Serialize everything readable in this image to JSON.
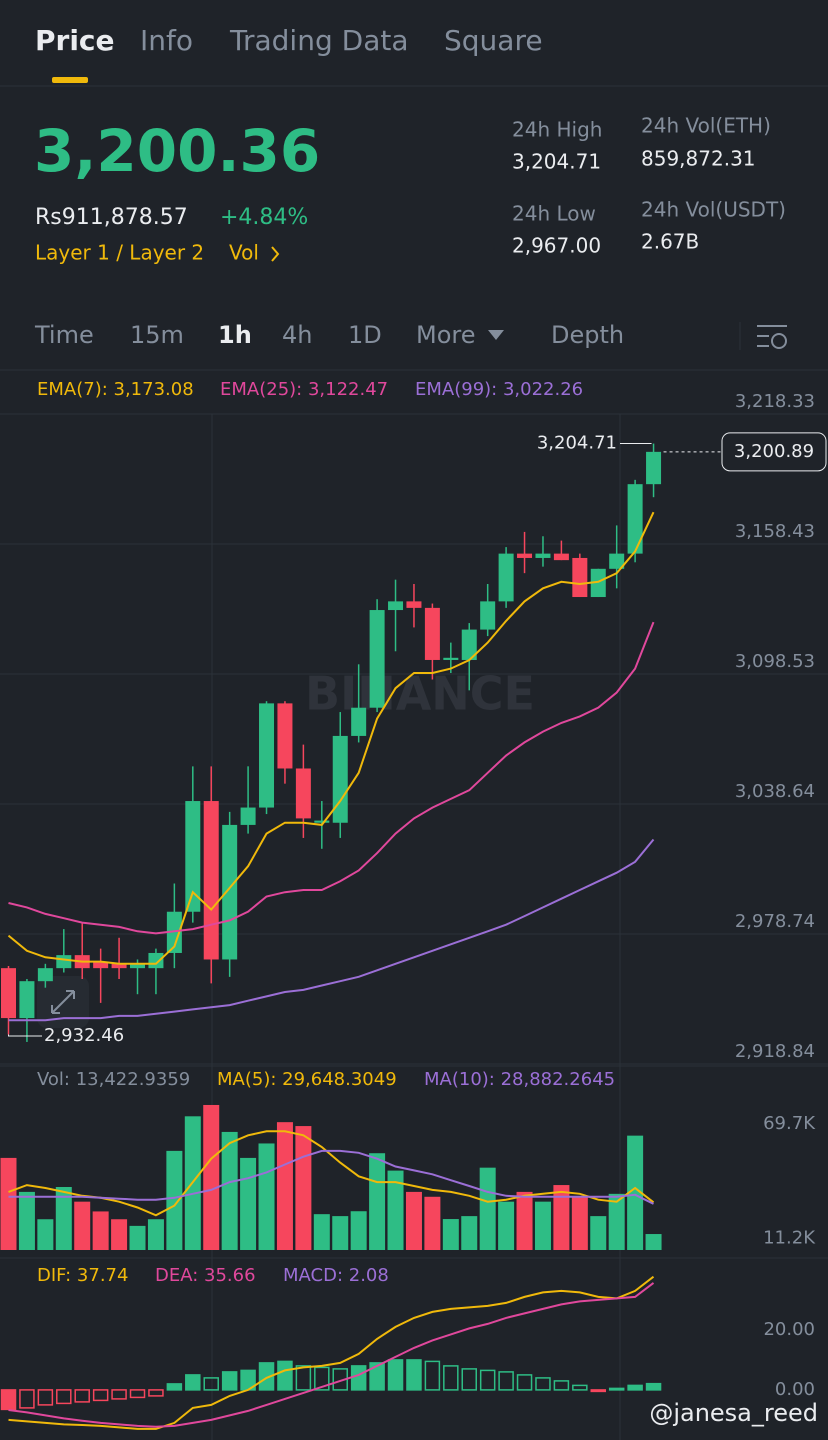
{
  "tabs": [
    "Price",
    "Info",
    "Trading Data",
    "Square"
  ],
  "header": {
    "price": "3,200.36",
    "fiat": "Rs911,878.57",
    "change": "+4.84%",
    "tag": "Layer 1 / Layer 2",
    "vol": "Vol"
  },
  "stats": [
    {
      "label": "24h High",
      "value": "3,204.71"
    },
    {
      "label": "24h Vol(ETH)",
      "value": "859,872.31"
    },
    {
      "label": "24h Low",
      "value": "2,967.00"
    },
    {
      "label": "24h Vol(USDT)",
      "value": "2.67B"
    }
  ],
  "intervals": [
    "Time",
    "15m",
    "1h",
    "4h",
    "1D",
    "More",
    "Depth"
  ],
  "chart": {
    "type": "candlestick",
    "watermark": "BINANCE",
    "price": {
      "ylim": [
        2918.84,
        3218.33
      ],
      "yticks": [
        {
          "value": 3218.33,
          "label": "3,218.33"
        },
        {
          "value": 3158.43,
          "label": "3,158.43"
        },
        {
          "value": 3098.53,
          "label": "3,098.53"
        },
        {
          "value": 3038.64,
          "label": "3,038.64"
        },
        {
          "value": 2978.74,
          "label": "2,978.74"
        },
        {
          "value": 2918.84,
          "label": "2,918.84"
        }
      ],
      "up_color": "#2ebd85",
      "down_color": "#f6465d",
      "candles": [
        [
          2963,
          2964,
          2932.46,
          2940
        ],
        [
          2940,
          2958,
          2929,
          2957
        ],
        [
          2957,
          2965,
          2954,
          2963
        ],
        [
          2963,
          2981,
          2961,
          2969
        ],
        [
          2969,
          2984,
          2958,
          2963
        ],
        [
          2966,
          2972,
          2947,
          2963
        ],
        [
          2965,
          2977,
          2958,
          2963
        ],
        [
          2963,
          2967,
          2951,
          2965
        ],
        [
          2963,
          2972,
          2951,
          2970
        ],
        [
          2970,
          3002,
          2963,
          2989
        ],
        [
          2989,
          3056,
          2984,
          3040
        ],
        [
          3040,
          3056,
          2956,
          2967
        ],
        [
          2967,
          3035,
          2959,
          3029
        ],
        [
          3029,
          3056,
          3025,
          3037
        ],
        [
          3037,
          3086,
          3034,
          3085
        ],
        [
          3085,
          3086,
          3048,
          3055
        ],
        [
          3055,
          3066,
          3023,
          3032
        ],
        [
          3030,
          3040,
          3018,
          3031
        ],
        [
          3030,
          3081,
          3023,
          3070
        ],
        [
          3070,
          3103,
          3067,
          3083
        ],
        [
          3083,
          3133,
          3081,
          3128
        ],
        [
          3128,
          3142,
          3109,
          3132
        ],
        [
          3132,
          3140,
          3120,
          3129
        ],
        [
          3129,
          3131,
          3096,
          3105
        ],
        [
          3105,
          3113,
          3099,
          3106
        ],
        [
          3105,
          3122,
          3091,
          3119
        ],
        [
          3119,
          3140,
          3116,
          3132
        ],
        [
          3132,
          3157,
          3129,
          3154
        ],
        [
          3154,
          3164,
          3145,
          3152
        ],
        [
          3152,
          3162,
          3148,
          3154
        ],
        [
          3154,
          3160,
          3151,
          3151
        ],
        [
          3152,
          3154,
          3134,
          3134
        ],
        [
          3134,
          3147,
          3134,
          3147
        ],
        [
          3147,
          3167,
          3138,
          3154
        ],
        [
          3154,
          3188,
          3150,
          3186
        ],
        [
          3186,
          3204.71,
          3180,
          3200.89
        ]
      ],
      "series": [
        {
          "name": "EMA(7): 3,173.08",
          "color": "#f0b90b",
          "values": [
            2978,
            2971,
            2968,
            2967,
            2966,
            2966,
            2965,
            2965,
            2965,
            2973,
            2998,
            2990,
            3000,
            3010,
            3025,
            3030,
            3030,
            3029,
            3040,
            3053,
            3078,
            3092,
            3099,
            3099,
            3101,
            3105,
            3113,
            3123,
            3132,
            3138,
            3141,
            3140,
            3141,
            3145,
            3155,
            3173.08
          ]
        },
        {
          "name": "EMA(25): 3,122.47",
          "color": "#e0489c",
          "values": [
            2993,
            2991,
            2988,
            2986,
            2984,
            2983,
            2982,
            2980,
            2979,
            2980,
            2981,
            2983,
            2985,
            2989,
            2996,
            2998,
            2999,
            2999,
            3003,
            3008,
            3016,
            3025,
            3032,
            3037,
            3041,
            3045,
            3053,
            3061,
            3067,
            3072,
            3076,
            3079,
            3083,
            3090,
            3101,
            3122.47
          ]
        },
        {
          "name": "EMA(99): 3,022.26",
          "color": "#9b6fd6",
          "values": [
            2939,
            2939,
            2939,
            2940,
            2940,
            2940,
            2941,
            2941,
            2942,
            2943,
            2944,
            2945,
            2946,
            2948,
            2950,
            2952,
            2953,
            2955,
            2957,
            2959,
            2962,
            2965,
            2968,
            2971,
            2974,
            2977,
            2980,
            2983,
            2987,
            2991,
            2995,
            2999,
            3003,
            3007,
            3012,
            3022.26
          ]
        }
      ],
      "high_marker": {
        "value": 3204.71,
        "label": "3,204.71"
      },
      "low_marker": {
        "value": 2932.46,
        "label": "2,932.46"
      },
      "last_marker": {
        "value": 3200.89,
        "label": "3,200.89"
      }
    },
    "volume": {
      "legend": "Vol: 13,422.9359",
      "ylim": [
        5250,
        80000
      ],
      "yticks": [
        {
          "value": 69700,
          "label": "69.7K"
        },
        {
          "value": 11200,
          "label": "11.2K"
        }
      ],
      "values": [
        52400,
        35000,
        21000,
        37500,
        30000,
        25000,
        21000,
        17600,
        21000,
        56000,
        73700,
        79500,
        65700,
        52400,
        59800,
        70700,
        68700,
        23600,
        22600,
        25100,
        54800,
        45900,
        35000,
        32500,
        21100,
        22600,
        47400,
        30000,
        35000,
        30000,
        38500,
        32500,
        22600,
        34000,
        63800,
        13422.9359
      ],
      "series": [
        {
          "name": "MA(5): 29,648.3049",
          "color": "#f0b90b",
          "values": [
            35000,
            38500,
            37000,
            35000,
            33000,
            32000,
            30000,
            27000,
            23000,
            28000,
            40000,
            52000,
            60000,
            64000,
            66000,
            66000,
            64000,
            58000,
            50000,
            43000,
            40000,
            40000,
            38000,
            36000,
            35000,
            33000,
            30000,
            31000,
            33000,
            34000,
            35000,
            34000,
            31000,
            30000,
            37000,
            29648.3049
          ]
        },
        {
          "name": "MA(10): 28,882.2645",
          "color": "#9b6fd6",
          "values": [
            32500,
            32500,
            32500,
            32500,
            32500,
            32000,
            31500,
            31000,
            31000,
            32000,
            34000,
            36000,
            40000,
            42000,
            45000,
            49000,
            53000,
            56000,
            56000,
            55000,
            52000,
            48000,
            46000,
            44000,
            41000,
            38000,
            35000,
            33000,
            32500,
            32500,
            32500,
            32500,
            32500,
            32500,
            33500,
            28882.2645
          ]
        }
      ]
    },
    "macd": {
      "ylim": [
        -16.7,
        38.3
      ],
      "yticks": [
        {
          "value": 20,
          "label": "20.00"
        },
        {
          "value": 0,
          "label": "0.00"
        }
      ],
      "series": [
        {
          "name": "DIF: 37.74",
          "color": "#f0b90b",
          "values": [
            -10,
            -10.5,
            -11,
            -11.5,
            -11.7,
            -12,
            -12.5,
            -13,
            -13,
            -11,
            -6,
            -5,
            -2,
            0,
            4,
            6.5,
            7.5,
            8,
            9,
            12,
            17,
            21,
            24,
            26,
            27,
            27.5,
            28,
            29,
            31,
            32.5,
            33,
            32.5,
            31,
            30.5,
            33,
            37.74
          ]
        },
        {
          "name": "DEA: 35.66",
          "color": "#e0489c",
          "values": [
            -6.7,
            -7.5,
            -8.5,
            -9.5,
            -10.3,
            -11,
            -11.5,
            -12,
            -12.3,
            -12,
            -11,
            -10,
            -8.5,
            -7,
            -5,
            -3,
            -1,
            1,
            3,
            5,
            8,
            11,
            14,
            16.5,
            18.5,
            20.5,
            22,
            24,
            25.5,
            27,
            28.5,
            29.5,
            30,
            30.5,
            31,
            35.66
          ]
        }
      ],
      "histogram": {
        "name": "MACD: 2.08",
        "color": "#9b6fd6",
        "values": [
          -6.5,
          -6,
          -5,
          -4.5,
          -4,
          -3.5,
          -3,
          -2.5,
          -2,
          2,
          5,
          4,
          6,
          6.5,
          9,
          9.5,
          8,
          7.5,
          7,
          8,
          9,
          10,
          10,
          9.5,
          8,
          7,
          6.5,
          6,
          5,
          4,
          3,
          1.5,
          -0.5,
          0.5,
          1.5,
          2.08
        ]
      }
    }
  },
  "credit": "@janesa_reed"
}
